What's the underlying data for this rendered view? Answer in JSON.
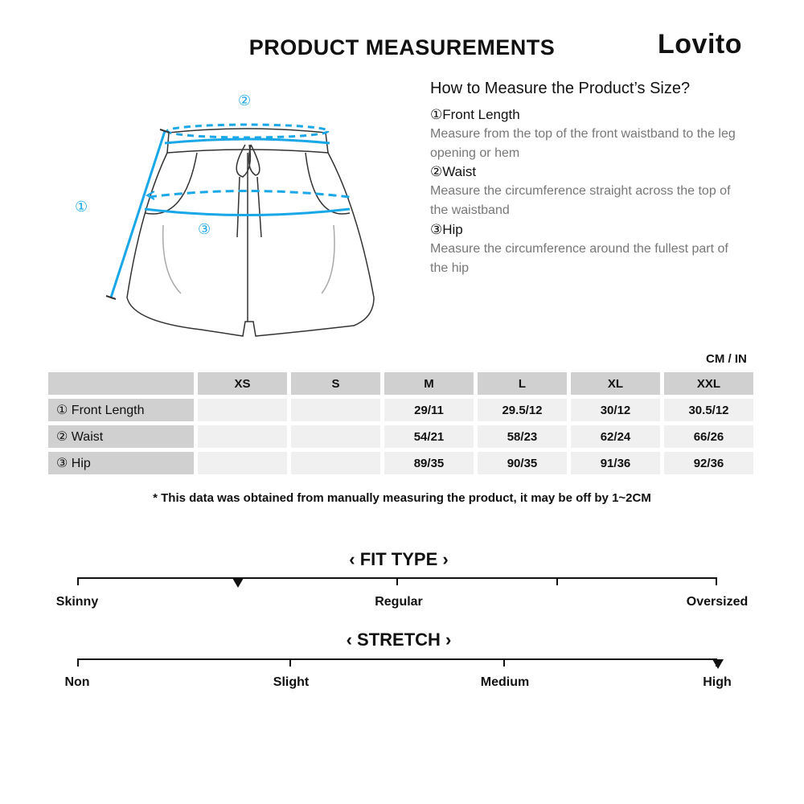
{
  "header": {
    "title": "PRODUCT MEASUREMENTS",
    "brand": "Lovito"
  },
  "guide": {
    "title": "How to Measure the Product’s Size?",
    "items": [
      {
        "marker": "①",
        "name": "Front Length",
        "desc": "Measure from the top of the front waistband to the leg opening or hem"
      },
      {
        "marker": "②",
        "name": "Waist",
        "desc": "Measure the circumference straight across the top of the waistband"
      },
      {
        "marker": "③",
        "name": "Hip",
        "desc": "Measure the circumference around the fullest part of the hip"
      }
    ]
  },
  "diagram": {
    "labels": [
      "①",
      "②",
      "③"
    ],
    "accent": "#1aa7e8"
  },
  "table": {
    "unit": "CM / IN",
    "columns": [
      "XS",
      "S",
      "M",
      "L",
      "XL",
      "XXL"
    ],
    "rows": [
      {
        "label": "① Front Length",
        "values": [
          "",
          "",
          "29/11",
          "29.5/12",
          "30/12",
          "30.5/12"
        ]
      },
      {
        "label": "② Waist",
        "values": [
          "",
          "",
          "54/21",
          "58/23",
          "62/24",
          "66/26"
        ]
      },
      {
        "label": "③ Hip",
        "values": [
          "",
          "",
          "89/35",
          "90/35",
          "91/36",
          "92/36"
        ]
      }
    ]
  },
  "note": "* This data was obtained from manually measuring the product, it may be off by 1~2CM",
  "fit": {
    "title": "‹ FIT TYPE ›",
    "labels": [
      "Skinny",
      "Regular",
      "Oversized"
    ],
    "value_fraction": 0.25
  },
  "stretch": {
    "title": "‹ STRETCH ›",
    "labels": [
      "Non",
      "Slight",
      "Medium",
      "High"
    ],
    "value_fraction": 1.0
  }
}
